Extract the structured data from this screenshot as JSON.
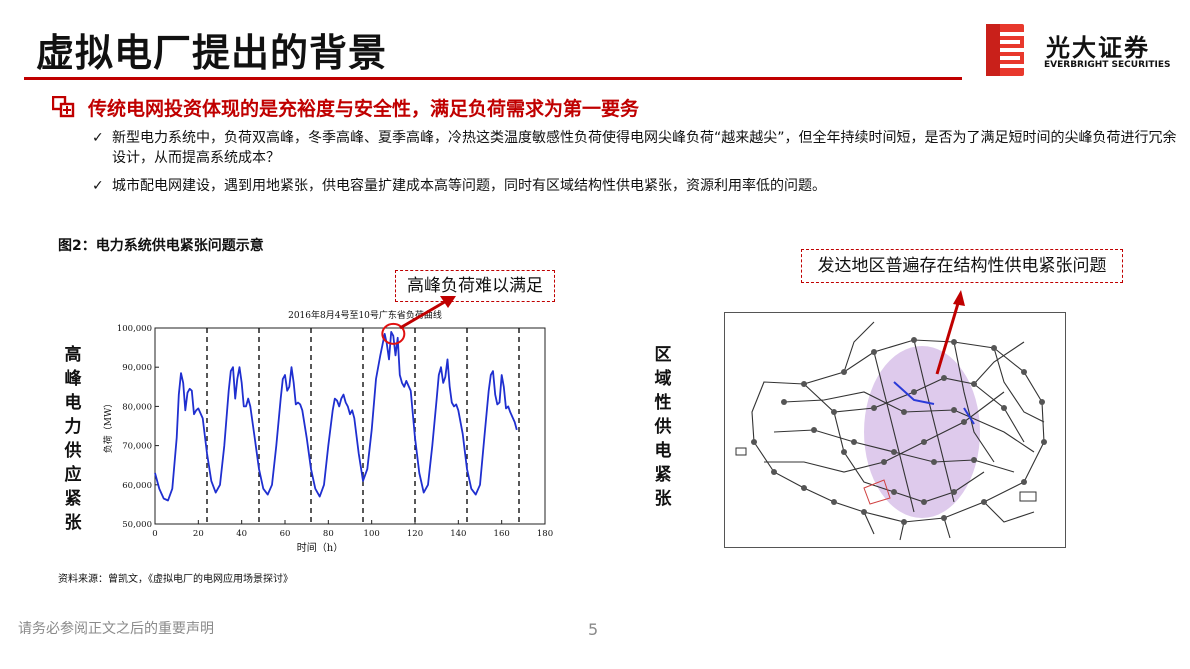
{
  "header": {
    "title": "虚拟电厂提出的背景",
    "logo_cn": "光大证券",
    "logo_en": "EVERBRIGHT SECURITIES"
  },
  "section": {
    "heading": "传统电网投资体现的是充裕度与安全性，满足负荷需求为第一要务",
    "bullets": [
      "新型电力系统中，负荷双高峰，冬季高峰、夏季高峰，冷热这类温度敏感性负荷使得电网尖峰负荷“越来越尖”，但全年持续时间短，是否为了满足短时间的尖峰负荷进行冗余设计，从而提高系统成本？",
      "城市配电网建设，遇到用地紧张，供电容量扩建成本高等问题，同时有区域结构性供电紧张，资源利用率低的问题。"
    ],
    "check_mark": "✓"
  },
  "figure": {
    "caption": "图2：电力系统供电紧张问题示意",
    "left_label": "高峰电力供应紧张",
    "right_label": "区域性供电紧张",
    "callout_left": "高峰负荷难以满足",
    "callout_right": "发达地区普遍存在结构性供电紧张问题",
    "source": "资料来源：曾凯文，《虚拟电厂的电网应用场景探讨》"
  },
  "chart_data": {
    "type": "line",
    "title": "2016年8月4号至10号广东省负荷曲线",
    "xlabel": "时间（h）",
    "ylabel": "负荷（MW）",
    "xlim": [
      0,
      180
    ],
    "ylim": [
      50000,
      100000
    ],
    "xticks": [
      0,
      20,
      40,
      60,
      80,
      100,
      120,
      140,
      160,
      180
    ],
    "yticks": [
      50000,
      60000,
      70000,
      80000,
      90000,
      100000
    ],
    "ytick_labels": [
      "50,000",
      "60,000",
      "70,000",
      "80,000",
      "90,000",
      "100,000"
    ],
    "day_boundaries": [
      24,
      48,
      72,
      96,
      120,
      144,
      168
    ],
    "series": [
      {
        "color": "#1f2fd0",
        "x": [
          0,
          2,
          4,
          6,
          8,
          10,
          11,
          12,
          13,
          14,
          15,
          16,
          17,
          18,
          19,
          20,
          22,
          24,
          26,
          28,
          30,
          32,
          34,
          35,
          36,
          37,
          38,
          39,
          40,
          41,
          42,
          43,
          44,
          46,
          48,
          50,
          52,
          54,
          56,
          58,
          59,
          60,
          61,
          62,
          63,
          64,
          65,
          66,
          67,
          68,
          70,
          72,
          74,
          76,
          78,
          80,
          82,
          83,
          84,
          85,
          86,
          87,
          88,
          89,
          90,
          91,
          92,
          94,
          96,
          98,
          100,
          102,
          104,
          106,
          107,
          108,
          109,
          110,
          111,
          112,
          113,
          114,
          115,
          116,
          118,
          120,
          122,
          124,
          126,
          128,
          130,
          131,
          132,
          133,
          134,
          135,
          136,
          137,
          138,
          139,
          140,
          142,
          144,
          146,
          148,
          150,
          152,
          154,
          155,
          156,
          157,
          158,
          159,
          160,
          161,
          162,
          163,
          164,
          166,
          167
        ],
        "y": [
          63000,
          59000,
          56500,
          56000,
          59000,
          72000,
          83000,
          88500,
          86000,
          79000,
          83500,
          84500,
          84000,
          78000,
          79000,
          79500,
          77000,
          68000,
          61000,
          58000,
          60000,
          70000,
          84000,
          89000,
          90000,
          82000,
          87000,
          90000,
          86000,
          80000,
          80000,
          82000,
          80000,
          72000,
          64000,
          59000,
          57500,
          60000,
          70000,
          82000,
          87000,
          88000,
          84000,
          85000,
          90000,
          86000,
          80500,
          81000,
          80500,
          79000,
          72000,
          64000,
          59000,
          57000,
          60000,
          70000,
          79000,
          82000,
          81500,
          80000,
          82000,
          83000,
          81000,
          80000,
          78000,
          79000,
          77000,
          68000,
          61000,
          64000,
          74000,
          87000,
          93000,
          98500,
          96000,
          92000,
          99000,
          98000,
          93000,
          97500,
          88000,
          86000,
          85000,
          86500,
          84000,
          72000,
          63000,
          58000,
          60000,
          70000,
          82000,
          88000,
          90000,
          86000,
          87500,
          92000,
          85000,
          81000,
          80000,
          80500,
          79000,
          73000,
          64000,
          59000,
          57500,
          60000,
          72000,
          84000,
          88000,
          89000,
          83000,
          80500,
          81000,
          88000,
          85000,
          79500,
          80000,
          78500,
          76000,
          74000
        ]
      }
    ],
    "highlight": {
      "x": 110,
      "y": 98000
    }
  }
}
